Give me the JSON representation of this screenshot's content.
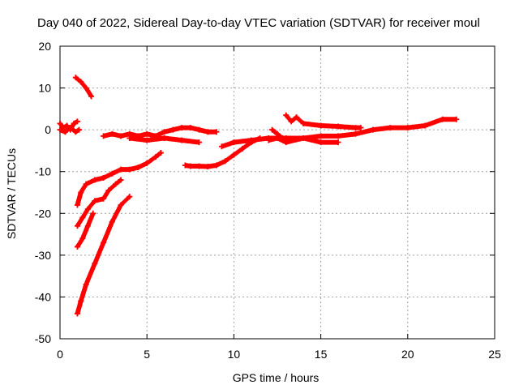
{
  "chart_data": {
    "type": "scatter",
    "title": "Day 040 of 2022, Sidereal Day-to-day VTEC variation (SDTVAR) for receiver moul",
    "xlabel": "GPS time / hours",
    "ylabel": "SDTVAR / TECUs",
    "xlim": [
      0,
      25
    ],
    "ylim": [
      -50,
      20
    ],
    "xticks": [
      0,
      5,
      10,
      15,
      20,
      25
    ],
    "yticks": [
      -50,
      -40,
      -30,
      -20,
      -10,
      0,
      10,
      20
    ],
    "grid": true,
    "marker": "plus",
    "color": "#ff0000",
    "series": [
      {
        "x": [
          0.0,
          0.2,
          0.4,
          0.6,
          0.8,
          1.0
        ],
        "y": [
          1.5,
          0.5,
          1.0,
          0.0,
          1.5,
          2.0
        ]
      },
      {
        "x": [
          0.0,
          0.3,
          0.6,
          0.9,
          1.1
        ],
        "y": [
          0.0,
          -0.5,
          0.5,
          -0.5,
          0.0
        ]
      },
      {
        "x": [
          0.9,
          1.2,
          1.5,
          1.8
        ],
        "y": [
          12.5,
          11.5,
          10.0,
          8.0
        ]
      },
      {
        "x": [
          2.5,
          3.0,
          3.5,
          4.0,
          4.5,
          5.0,
          5.5,
          6.0,
          6.5,
          7.0,
          7.5,
          8.0,
          8.5,
          9.0
        ],
        "y": [
          -1.5,
          -1.0,
          -1.5,
          -1.0,
          -1.5,
          -1.0,
          -1.5,
          -0.5,
          0.0,
          0.5,
          0.5,
          0.0,
          -0.5,
          -0.5
        ]
      },
      {
        "x": [
          4.0,
          5.0,
          6.0,
          7.0,
          8.0
        ],
        "y": [
          -2.0,
          -2.5,
          -2.0,
          -2.5,
          -3.0
        ]
      },
      {
        "x": [
          1.0,
          1.2,
          1.5,
          2.0,
          2.5,
          3.0,
          3.5,
          4.0,
          4.5,
          5.0,
          5.5,
          5.8
        ],
        "y": [
          -18.0,
          -15.0,
          -13.0,
          -12.0,
          -11.5,
          -10.5,
          -9.5,
          -9.5,
          -9.0,
          -8.0,
          -6.5,
          -5.5
        ]
      },
      {
        "x": [
          1.0,
          1.3,
          1.6,
          2.0,
          2.5,
          2.8,
          3.2,
          3.5
        ],
        "y": [
          -23.0,
          -21.0,
          -19.0,
          -17.0,
          -16.5,
          -14.5,
          -13.0,
          -12.0
        ]
      },
      {
        "x": [
          1.0,
          1.3,
          1.6,
          1.9
        ],
        "y": [
          -28.0,
          -26.0,
          -23.0,
          -20.0
        ]
      },
      {
        "x": [
          1.0,
          1.2,
          1.5,
          2.0,
          2.5,
          3.0,
          3.5,
          4.0
        ],
        "y": [
          -44.0,
          -41.0,
          -37.0,
          -32.0,
          -27.0,
          -22.0,
          -18.0,
          -16.0
        ]
      },
      {
        "x": [
          7.2,
          7.5,
          8.0,
          8.5,
          9.0,
          9.5,
          10.0,
          10.5,
          11.0,
          11.5
        ],
        "y": [
          -8.5,
          -8.7,
          -8.7,
          -8.8,
          -8.5,
          -7.5,
          -6.0,
          -4.5,
          -3.0,
          -2.0
        ]
      },
      {
        "x": [
          9.3,
          10.0,
          11.0,
          12.0,
          13.0,
          14.0,
          15.0,
          16.0,
          17.0,
          18.0,
          19.0,
          20.0,
          21.0,
          22.0,
          22.8
        ],
        "y": [
          -4.0,
          -3.0,
          -2.5,
          -2.0,
          -2.0,
          -2.0,
          -1.5,
          -1.5,
          -1.0,
          0.0,
          0.5,
          0.5,
          1.0,
          2.5,
          2.5
        ]
      },
      {
        "x": [
          12.0,
          12.5,
          13.0,
          14.0,
          15.0,
          16.0
        ],
        "y": [
          -2.5,
          -2.0,
          -3.0,
          -2.0,
          -3.0,
          -3.0
        ]
      },
      {
        "x": [
          12.2,
          12.5,
          12.8
        ],
        "y": [
          0.0,
          -1.0,
          -2.0
        ]
      },
      {
        "x": [
          13.0,
          13.3,
          13.6,
          14.0,
          15.0,
          16.0,
          17.0,
          17.3
        ],
        "y": [
          3.5,
          2.0,
          3.0,
          1.5,
          1.0,
          0.8,
          0.5,
          0.5
        ]
      }
    ]
  }
}
